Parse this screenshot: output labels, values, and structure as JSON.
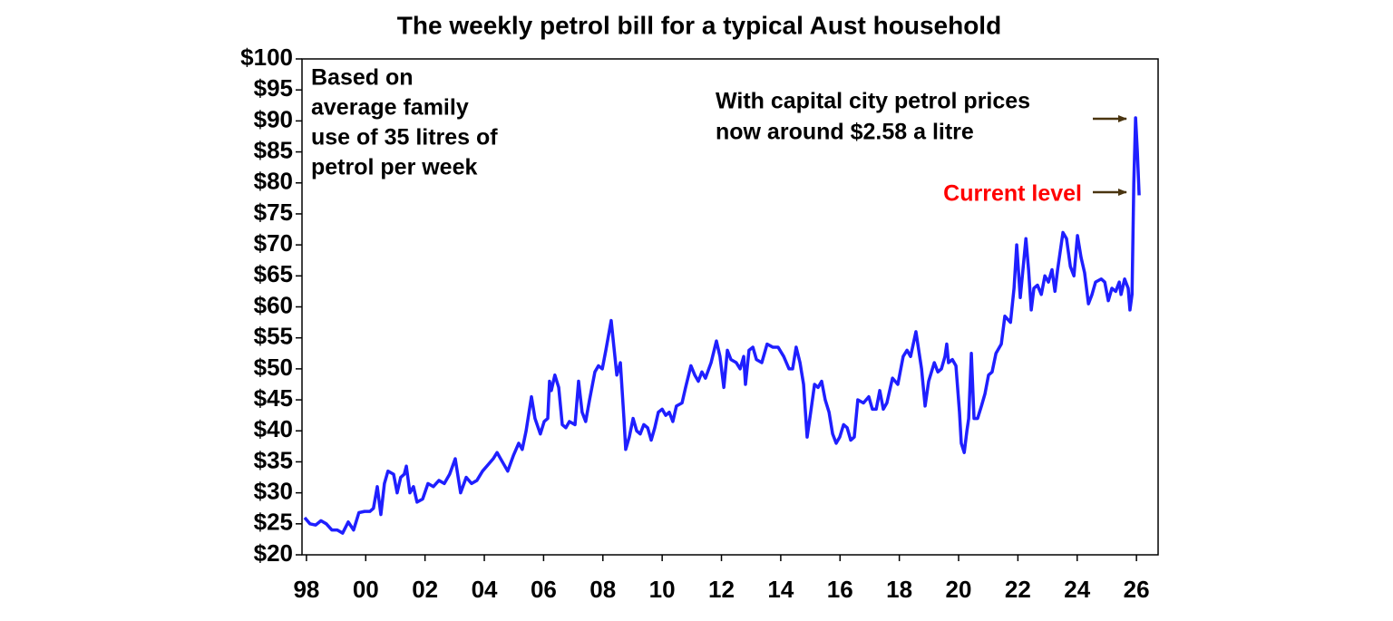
{
  "chart_data": {
    "type": "line",
    "title": "The weekly petrol bill for a typical Aust household",
    "note": [
      "Based on",
      "average family",
      "use of 35 litres of",
      "petrol per week"
    ],
    "annotation": [
      "With capital city petrol prices",
      "now around $2.58 a litre"
    ],
    "current_label": "Current level",
    "xlim": [
      1997.85,
      2026.73
    ],
    "ylim": [
      20,
      100
    ],
    "xticks": [
      {
        "value": 1998,
        "label": "98"
      },
      {
        "value": 2000,
        "label": "00"
      },
      {
        "value": 2002,
        "label": "02"
      },
      {
        "value": 2004,
        "label": "04"
      },
      {
        "value": 2006,
        "label": "06"
      },
      {
        "value": 2008,
        "label": "08"
      },
      {
        "value": 2010,
        "label": "10"
      },
      {
        "value": 2012,
        "label": "12"
      },
      {
        "value": 2014,
        "label": "14"
      },
      {
        "value": 2016,
        "label": "16"
      },
      {
        "value": 2018,
        "label": "18"
      },
      {
        "value": 2020,
        "label": "20"
      },
      {
        "value": 2022,
        "label": "22"
      },
      {
        "value": 2024,
        "label": "24"
      },
      {
        "value": 2026,
        "label": "26"
      }
    ],
    "yticks": [
      {
        "value": 20,
        "label": "$20"
      },
      {
        "value": 25,
        "label": "$25"
      },
      {
        "value": 30,
        "label": "$30"
      },
      {
        "value": 35,
        "label": "$35"
      },
      {
        "value": 40,
        "label": "$40"
      },
      {
        "value": 45,
        "label": "$45"
      },
      {
        "value": 50,
        "label": "$50"
      },
      {
        "value": 55,
        "label": "$55"
      },
      {
        "value": 60,
        "label": "$60"
      },
      {
        "value": 65,
        "label": "$65"
      },
      {
        "value": 70,
        "label": "$70"
      },
      {
        "value": 75,
        "label": "$75"
      },
      {
        "value": 80,
        "label": "$80"
      },
      {
        "value": 85,
        "label": "$85"
      },
      {
        "value": 90,
        "label": "$90"
      },
      {
        "value": 95,
        "label": "$95"
      },
      {
        "value": 100,
        "label": "$100"
      }
    ],
    "grid": false,
    "series": [
      {
        "color": "#1f1fff",
        "x": [
          1997.94,
          1998.12,
          1998.31,
          1998.49,
          1998.67,
          1998.86,
          1999.04,
          1999.22,
          1999.41,
          1999.59,
          1999.77,
          1999.96,
          2000.14,
          2000.26,
          2000.39,
          2000.51,
          2000.63,
          2000.75,
          2000.94,
          2001.06,
          2001.18,
          2001.3,
          2001.37,
          2001.49,
          2001.61,
          2001.73,
          2001.92,
          2002.1,
          2002.28,
          2002.47,
          2002.65,
          2002.83,
          2003.02,
          2003.2,
          2003.39,
          2003.57,
          2003.75,
          2003.94,
          2004.12,
          2004.3,
          2004.43,
          2004.61,
          2004.79,
          2004.98,
          2005.16,
          2005.28,
          2005.41,
          2005.59,
          2005.71,
          2005.89,
          2006.02,
          2006.14,
          2006.2,
          2006.26,
          2006.38,
          2006.51,
          2006.63,
          2006.75,
          2006.87,
          2007.06,
          2007.18,
          2007.3,
          2007.42,
          2007.55,
          2007.73,
          2007.85,
          2007.98,
          2008.1,
          2008.28,
          2008.47,
          2008.59,
          2008.71,
          2008.77,
          2008.89,
          2009.02,
          2009.14,
          2009.26,
          2009.38,
          2009.51,
          2009.63,
          2009.75,
          2009.87,
          2010.0,
          2010.12,
          2010.24,
          2010.36,
          2010.48,
          2010.67,
          2010.79,
          2010.97,
          2011.1,
          2011.22,
          2011.34,
          2011.46,
          2011.65,
          2011.83,
          2011.95,
          2012.08,
          2012.2,
          2012.32,
          2012.5,
          2012.63,
          2012.75,
          2012.81,
          2012.93,
          2013.06,
          2013.18,
          2013.36,
          2013.54,
          2013.73,
          2013.91,
          2014.1,
          2014.28,
          2014.4,
          2014.52,
          2014.65,
          2014.77,
          2014.89,
          2015.01,
          2015.14,
          2015.26,
          2015.38,
          2015.5,
          2015.63,
          2015.75,
          2015.87,
          2015.99,
          2016.12,
          2016.24,
          2016.36,
          2016.48,
          2016.6,
          2016.79,
          2016.97,
          2017.09,
          2017.22,
          2017.34,
          2017.46,
          2017.58,
          2017.77,
          2017.95,
          2018.13,
          2018.26,
          2018.38,
          2018.56,
          2018.75,
          2018.87,
          2018.99,
          2019.18,
          2019.3,
          2019.42,
          2019.54,
          2019.6,
          2019.66,
          2019.79,
          2019.91,
          2020.03,
          2020.09,
          2020.19,
          2020.28,
          2020.34,
          2020.43,
          2020.52,
          2020.64,
          2020.77,
          2020.89,
          2021.01,
          2021.13,
          2021.26,
          2021.44,
          2021.56,
          2021.75,
          2021.87,
          2021.96,
          2022.08,
          2022.17,
          2022.27,
          2022.36,
          2022.45,
          2022.54,
          2022.66,
          2022.79,
          2022.91,
          2023.03,
          2023.15,
          2023.25,
          2023.34,
          2023.46,
          2023.52,
          2023.64,
          2023.77,
          2023.89,
          2024.01,
          2024.13,
          2024.25,
          2024.38,
          2024.5,
          2024.62,
          2024.81,
          2024.93,
          2025.05,
          2025.17,
          2025.3,
          2025.42,
          2025.48,
          2025.6,
          2025.72,
          2025.78,
          2025.85,
          2025.91,
          2025.97,
          2026.03,
          2026.09
        ],
        "values": [
          26,
          25,
          24.8,
          25.5,
          25,
          24,
          24,
          23.5,
          25.3,
          24,
          26.8,
          27,
          27,
          27.5,
          31,
          26.5,
          31.5,
          33.5,
          33,
          30,
          32.5,
          33,
          34.3,
          30,
          31,
          28.5,
          29,
          31.5,
          31,
          32,
          31.5,
          33,
          35.5,
          30,
          32.5,
          31.5,
          32,
          33.5,
          34.5,
          35.5,
          36.5,
          35,
          33.5,
          36,
          38,
          37,
          40,
          45.5,
          42,
          39.5,
          41.5,
          42,
          48,
          46.5,
          49,
          47,
          41,
          40.5,
          41.5,
          41,
          48,
          43,
          41.5,
          45,
          49.5,
          50.5,
          50,
          53,
          57.8,
          49,
          51,
          42,
          37,
          39,
          42,
          40,
          39.5,
          41,
          40.5,
          38.5,
          40.5,
          43,
          43.5,
          42.5,
          43,
          41.5,
          44,
          44.5,
          47,
          50.5,
          49,
          48,
          49.5,
          48.5,
          51,
          54.5,
          52,
          47,
          53,
          51.5,
          51,
          50,
          52,
          47.5,
          53,
          53.5,
          51.5,
          51,
          54,
          53.5,
          53.5,
          52,
          50,
          50,
          53.5,
          51,
          47.5,
          39,
          43,
          47.5,
          47,
          48,
          45,
          43,
          39.5,
          38,
          39,
          41,
          40.5,
          38.5,
          39,
          45,
          44.5,
          45.5,
          43.5,
          43.5,
          46.5,
          43.5,
          44.5,
          48.5,
          47.5,
          52,
          53,
          52,
          56,
          50,
          44,
          48,
          51,
          49.5,
          50,
          52,
          54,
          51,
          51.5,
          50.5,
          43,
          38,
          36.5,
          40,
          42,
          52.5,
          42,
          42,
          44,
          46,
          49,
          49.5,
          52.5,
          54,
          58.5,
          57.5,
          63,
          70,
          61.5,
          66,
          71,
          66,
          59.5,
          63,
          63.5,
          62,
          65,
          64,
          66,
          62.5,
          66,
          70,
          72,
          71,
          66.5,
          65,
          71.5,
          68,
          65.5,
          60.5,
          62,
          64,
          64.5,
          64,
          61,
          63,
          62.5,
          64,
          62,
          64.5,
          63,
          59.5,
          62,
          80,
          90.5,
          85,
          78
        ]
      }
    ]
  }
}
